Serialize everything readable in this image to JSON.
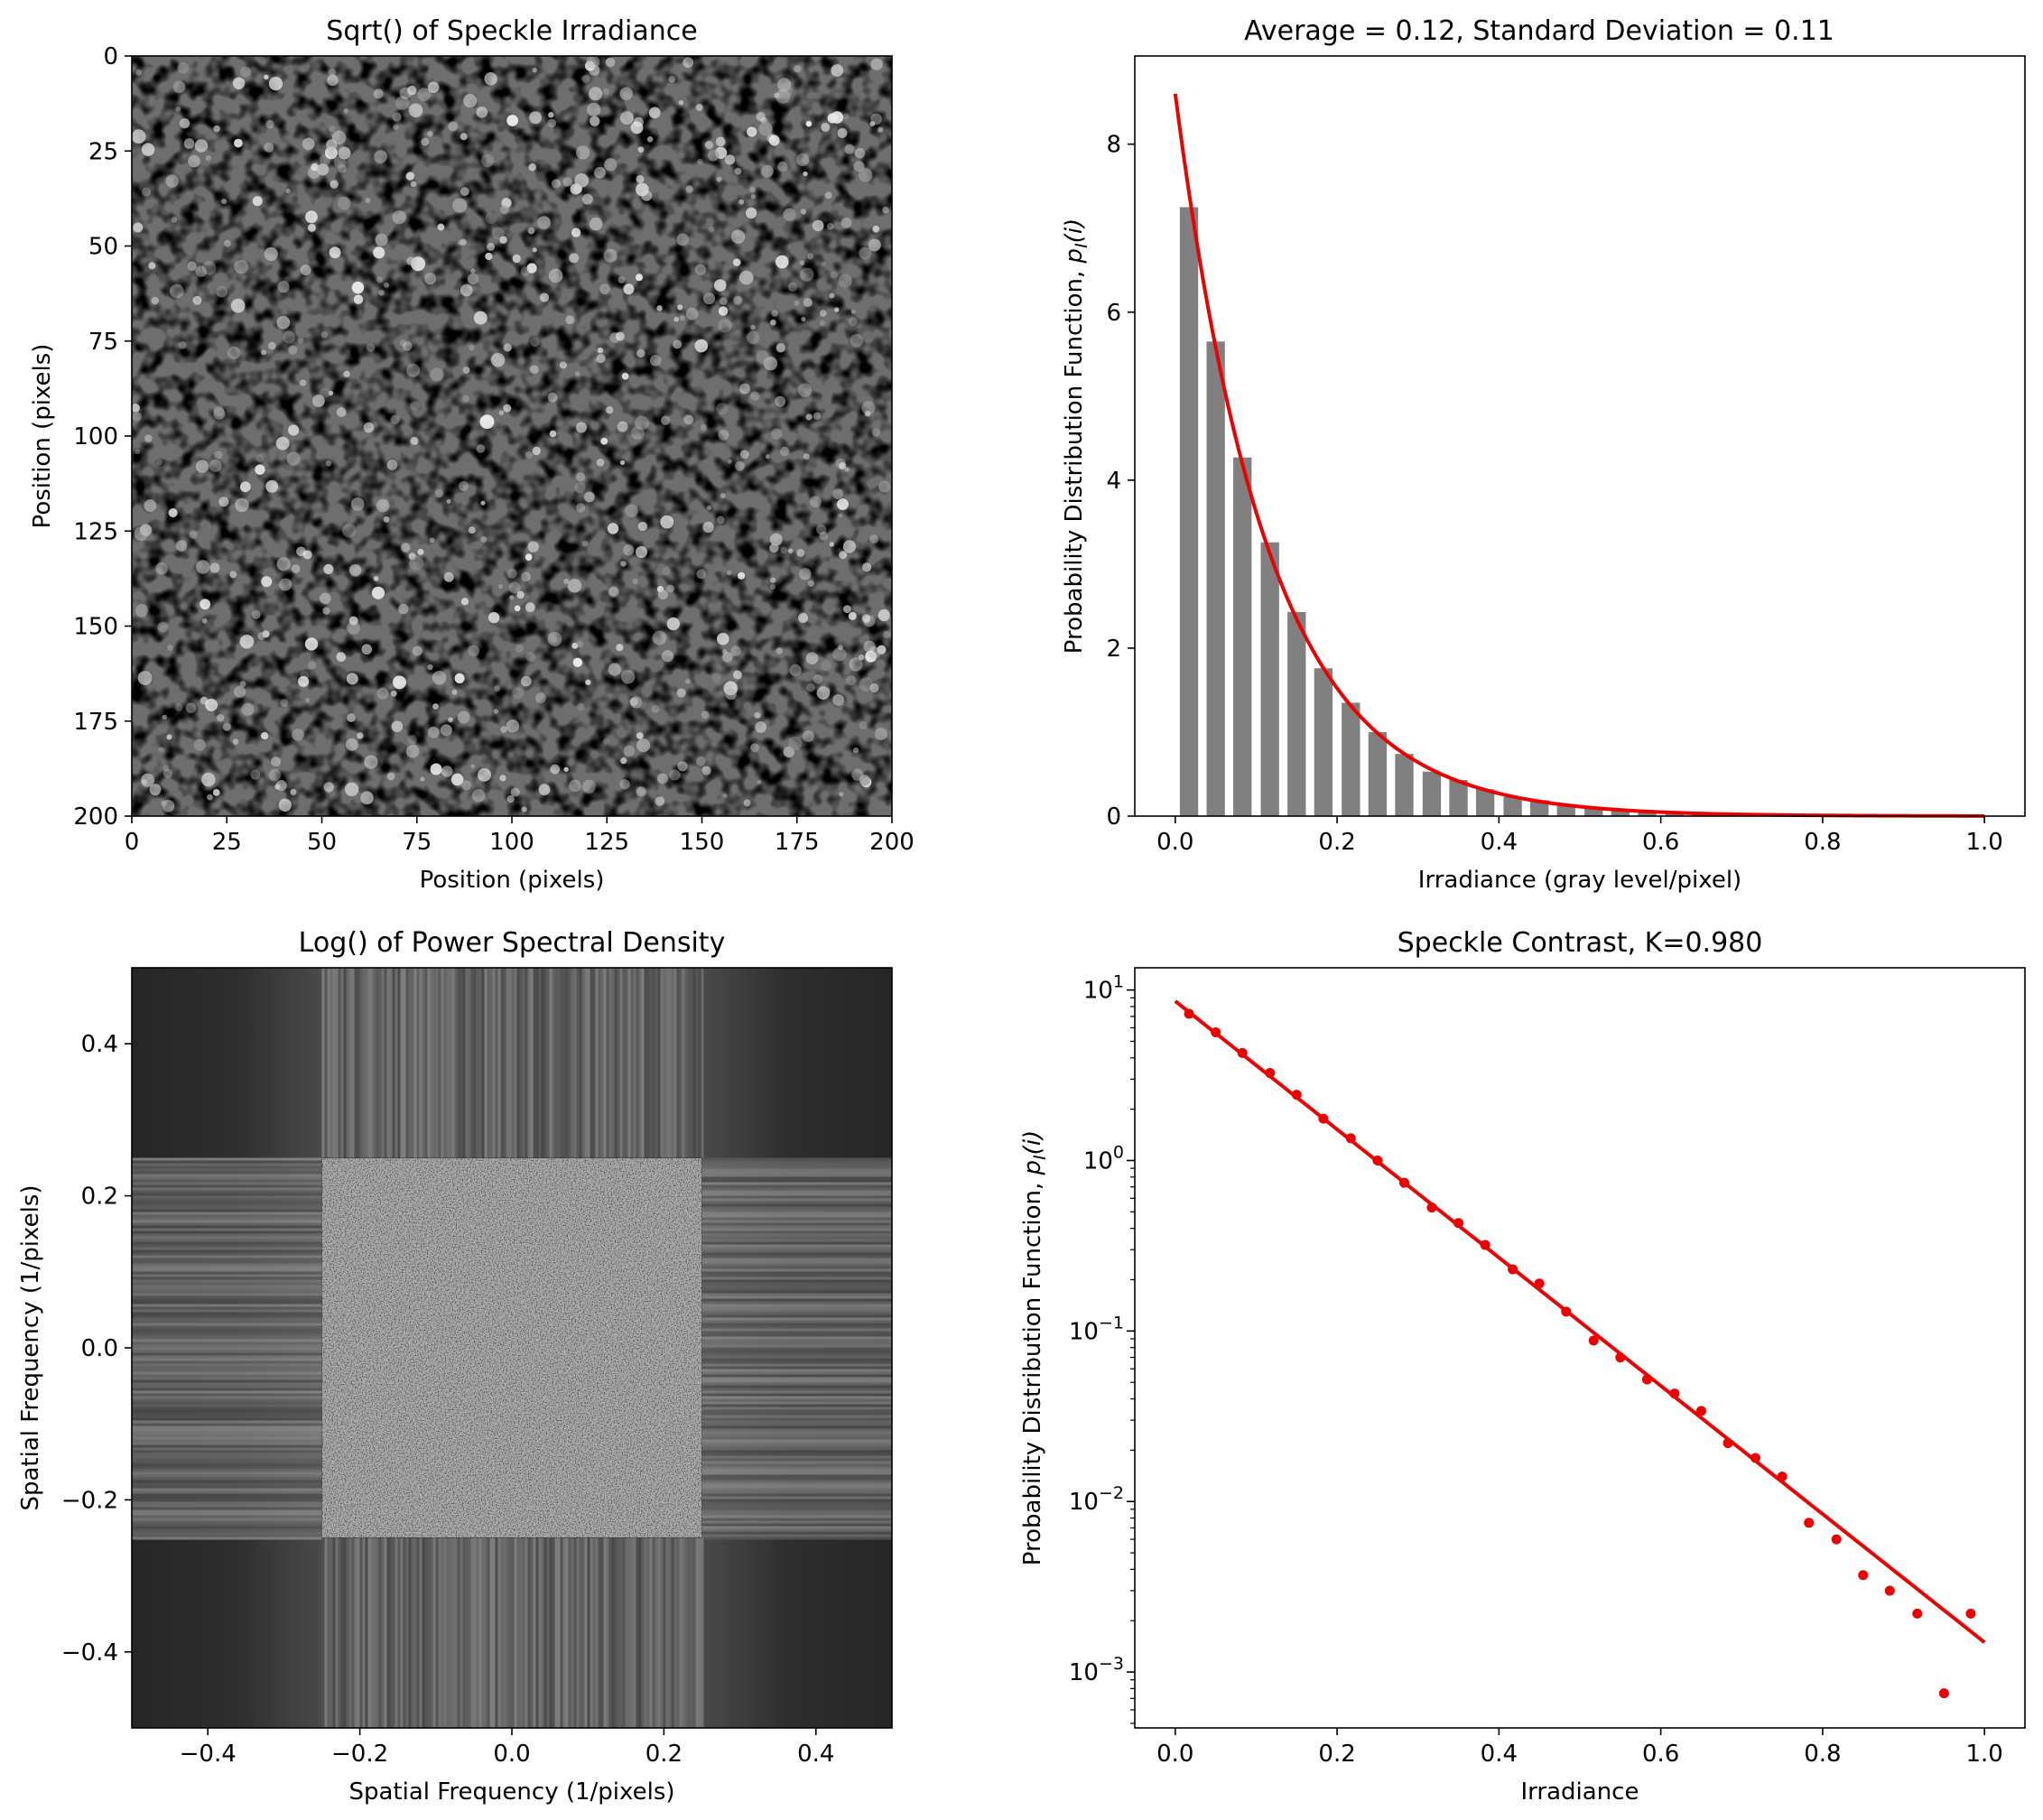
{
  "chart_data": [
    {
      "type": "heatmap",
      "title": "Sqrt() of Speckle Irradiance",
      "xlabel": "Position (pixels)",
      "ylabel": "Position (pixels)",
      "xlim": [
        0,
        200
      ],
      "ylim": [
        200,
        0
      ],
      "xticks": [
        "0",
        "25",
        "50",
        "75",
        "100",
        "125",
        "150",
        "175",
        "200"
      ],
      "yticks": [
        "0",
        "25",
        "50",
        "75",
        "100",
        "125",
        "150",
        "175",
        "200"
      ],
      "colormap": "gray"
    },
    {
      "type": "bar",
      "title": "Average = 0.12, Standard Deviation = 0.11",
      "xlabel": "Irradiance (gray level/pixel)",
      "ylabel": "Probability Distribution Function, p_I(i)",
      "xlim": [
        -0.05,
        1.05
      ],
      "ylim": [
        0,
        9.05
      ],
      "xticks": [
        "0.0",
        "0.2",
        "0.4",
        "0.6",
        "0.8",
        "1.0"
      ],
      "yticks": [
        "0",
        "2",
        "4",
        "6",
        "8"
      ],
      "bar_color": "#808080",
      "x": [
        0.017,
        0.05,
        0.083,
        0.117,
        0.15,
        0.183,
        0.217,
        0.25,
        0.283,
        0.317,
        0.35,
        0.383,
        0.417,
        0.45,
        0.483,
        0.517,
        0.55,
        0.583,
        0.617,
        0.65,
        0.683,
        0.717,
        0.75,
        0.783,
        0.817,
        0.85,
        0.883,
        0.917,
        0.95,
        0.983
      ],
      "values": [
        7.25,
        5.65,
        4.27,
        3.26,
        2.43,
        1.76,
        1.35,
        1.0,
        0.74,
        0.53,
        0.43,
        0.32,
        0.23,
        0.19,
        0.13,
        0.088,
        0.07,
        0.052,
        0.043,
        0.034,
        0.022,
        0.018,
        0.014,
        0.0075,
        0.006,
        0.0037,
        0.003,
        0.0022,
        0.00075,
        0.0022
      ],
      "fit": {
        "label": "exponential",
        "color": "#ee0000",
        "amplitude": 8.6,
        "mean": 0.1155,
        "x_range": [
          0,
          1
        ]
      }
    },
    {
      "type": "heatmap",
      "title": "Log() of Power Spectral Density",
      "xlabel": "Spatial Frequency (1/pixels)",
      "ylabel": "Spatial Frequency (1/pixels)",
      "xlim": [
        -0.5,
        0.5
      ],
      "ylim": [
        -0.5,
        0.5
      ],
      "xticks": [
        "−0.4",
        "−0.2",
        "0.0",
        "0.2",
        "0.4"
      ],
      "yticks": [
        "−0.4",
        "−0.2",
        "0.0",
        "0.2",
        "0.4"
      ],
      "passband": [
        -0.25,
        0.25
      ],
      "colormap": "gray"
    },
    {
      "type": "scatter",
      "title": "Speckle Contrast, K=0.980",
      "xlabel": "Irradiance",
      "ylabel": "Probability Distribution Function, p_I(i)",
      "yscale": "log",
      "xlim": [
        -0.05,
        1.05
      ],
      "ylim": [
        0.00047,
        13.5
      ],
      "xticks": [
        "0.0",
        "0.2",
        "0.4",
        "0.6",
        "0.8",
        "1.0"
      ],
      "yticks": [
        {
          "base": "10",
          "exp": "1",
          "value": 10
        },
        {
          "base": "10",
          "exp": "0",
          "value": 1
        },
        {
          "base": "10",
          "exp": "−1",
          "value": 0.1
        },
        {
          "base": "10",
          "exp": "−2",
          "value": 0.01
        },
        {
          "base": "10",
          "exp": "−3",
          "value": 0.001
        }
      ],
      "point_color": "#ee0000",
      "x": [
        0.017,
        0.05,
        0.083,
        0.117,
        0.15,
        0.183,
        0.217,
        0.25,
        0.283,
        0.317,
        0.35,
        0.383,
        0.417,
        0.45,
        0.483,
        0.517,
        0.55,
        0.583,
        0.617,
        0.65,
        0.683,
        0.717,
        0.75,
        0.783,
        0.817,
        0.85,
        0.883,
        0.917,
        0.95,
        0.983
      ],
      "y": [
        7.25,
        5.65,
        4.27,
        3.26,
        2.43,
        1.76,
        1.35,
        1.0,
        0.74,
        0.53,
        0.43,
        0.32,
        0.23,
        0.19,
        0.13,
        0.088,
        0.07,
        0.052,
        0.043,
        0.034,
        0.022,
        0.018,
        0.014,
        0.0075,
        0.006,
        0.0037,
        0.003,
        0.0022,
        0.00075,
        0.0022
      ],
      "fit": {
        "label": "exponential",
        "color": "#ee0000",
        "amplitude": 8.6,
        "mean": 0.1155,
        "x_range": [
          0,
          1
        ]
      }
    }
  ]
}
